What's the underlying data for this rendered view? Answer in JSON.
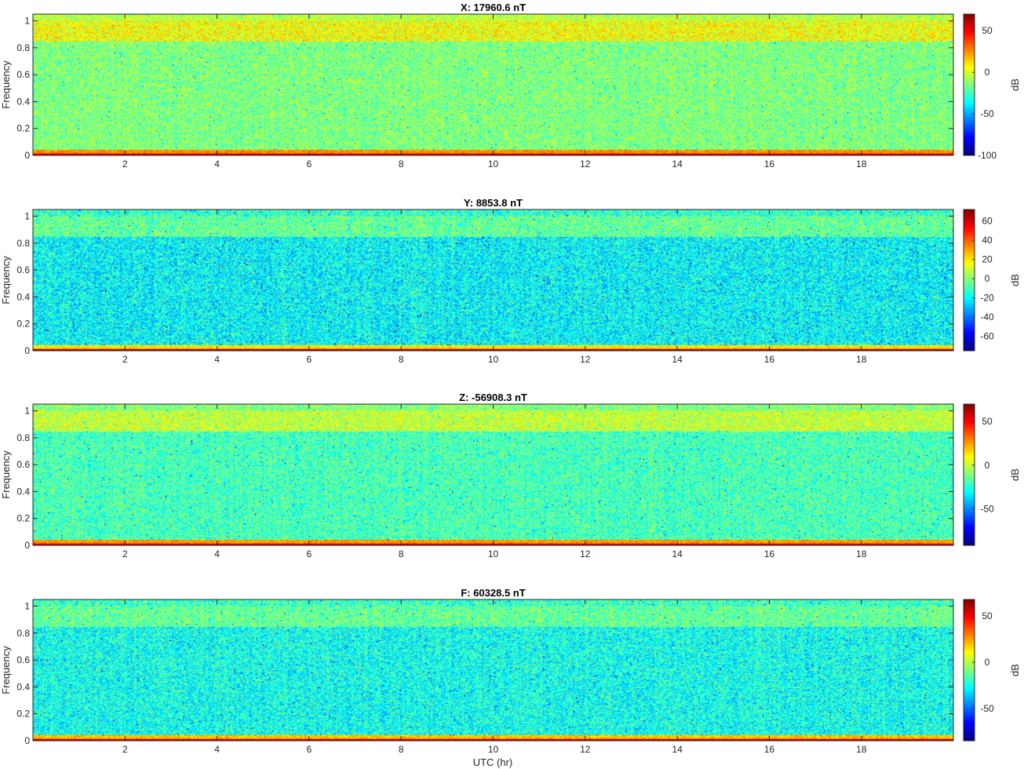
{
  "chart_data": {
    "type": "heatmap",
    "xlabel": "UTC (hr)",
    "colormap": "jet",
    "colorbar_label": "dB",
    "panels": [
      {
        "title": "X: 17960.6 nT",
        "ylabel": "Frequency",
        "xlim": [
          0,
          20
        ],
        "ylim": [
          0,
          1.05
        ],
        "xticks": [
          2,
          4,
          6,
          8,
          10,
          12,
          14,
          16,
          18
        ],
        "yticks": [
          0,
          0.2,
          0.4,
          0.6,
          0.8,
          1
        ],
        "clim": [
          -100,
          70
        ],
        "cticks": [
          50,
          0,
          -50,
          -100
        ],
        "levels": {
          "low_band": 55,
          "low_edge": 25,
          "mid": -15,
          "upper_band": 5,
          "upper_band_range": [
            0.85,
            1.0
          ]
        }
      },
      {
        "title": "Y: 8853.8 nT",
        "ylabel": "Frequency",
        "xlim": [
          0,
          20
        ],
        "ylim": [
          0,
          1.05
        ],
        "xticks": [
          2,
          4,
          6,
          8,
          10,
          12,
          14,
          16,
          18
        ],
        "yticks": [
          0,
          0.2,
          0.4,
          0.6,
          0.8,
          1
        ],
        "clim": [
          -75,
          72
        ],
        "cticks": [
          60,
          40,
          20,
          0,
          -20,
          -40,
          -60
        ],
        "levels": {
          "low_band": 62,
          "low_edge": 20,
          "mid": -20,
          "upper_band": -5,
          "upper_band_range": [
            0.85,
            1.0
          ]
        }
      },
      {
        "title": "Z: -56908.3 nT",
        "ylabel": "Frequency",
        "xlim": [
          0,
          20
        ],
        "ylim": [
          0,
          1.05
        ],
        "xticks": [
          2,
          4,
          6,
          8,
          10,
          12,
          14,
          16,
          18
        ],
        "yticks": [
          0,
          0.2,
          0.4,
          0.6,
          0.8,
          1
        ],
        "clim": [
          -92,
          70
        ],
        "cticks": [
          50,
          0,
          -50
        ],
        "levels": {
          "low_band": 55,
          "low_edge": 25,
          "mid": -20,
          "upper_band": 0,
          "upper_band_range": [
            0.85,
            1.0
          ]
        }
      },
      {
        "title": "F: 60328.5 nT",
        "ylabel": "Frequency",
        "xlim": [
          0,
          20
        ],
        "ylim": [
          0,
          1.05
        ],
        "xticks": [
          2,
          4,
          6,
          8,
          10,
          12,
          14,
          16,
          18
        ],
        "yticks": [
          0,
          0.2,
          0.4,
          0.6,
          0.8,
          1
        ],
        "clim": [
          -85,
          68
        ],
        "cticks": [
          50,
          0,
          -50
        ],
        "levels": {
          "low_band": 55,
          "low_edge": 20,
          "mid": -25,
          "upper_band": -12,
          "upper_band_range": [
            0.85,
            1.0
          ]
        }
      }
    ]
  }
}
